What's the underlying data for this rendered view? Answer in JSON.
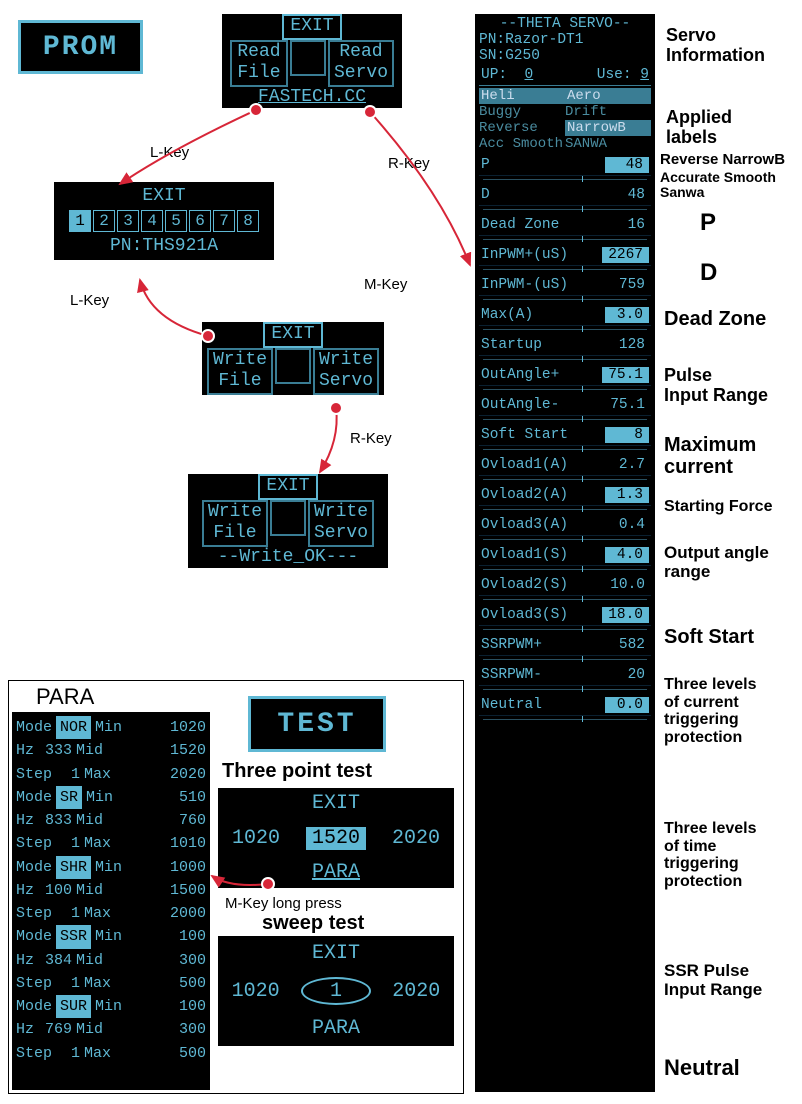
{
  "colors": {
    "lcd_bg": "#000000",
    "lcd_fg": "#5fb8d4",
    "arrow": "#d72638",
    "text": "#000000"
  },
  "prom": {
    "logo": "PROM"
  },
  "menu1": {
    "exit": "EXIT",
    "lt": "Read",
    "lb": "File",
    "rt": "Read",
    "rb": "Servo",
    "footer": "FASTECH.CC"
  },
  "keyLabels": {
    "lkey": "L-Key",
    "rkey": "R-Key",
    "mkey": "M-Key",
    "mkey_long": "M-Key long press"
  },
  "numpad": {
    "exit": "EXIT",
    "cells": [
      "1",
      "2",
      "3",
      "4",
      "5",
      "6",
      "7",
      "8"
    ],
    "sel_index": 0,
    "pn": "PN:THS921A"
  },
  "menu2": {
    "exit": "EXIT",
    "lt": "Write",
    "lb": "File",
    "rt": "Write",
    "rb": "Servo"
  },
  "menu3": {
    "exit": "EXIT",
    "lt": "Write",
    "lb": "File",
    "rt": "Write",
    "rb": "Servo",
    "status": "--Write_OK---"
  },
  "right": {
    "title": "--THETA SERVO--",
    "pn": "PN:Razor-DT1",
    "sn": "SN:G250",
    "up_label": "UP:",
    "up_val": "0",
    "use_label": "Use:",
    "use_val": "9",
    "labels": [
      [
        "Heli",
        "Aero"
      ],
      [
        "Buggy",
        "Drift"
      ],
      [
        "Reverse",
        "NarrowB"
      ],
      [
        "Acc Smooth",
        "SANWA"
      ]
    ],
    "params": [
      {
        "k": "P",
        "v": "48",
        "hl": true
      },
      {
        "k": "D",
        "v": "48",
        "hl": false
      },
      {
        "k": "Dead Zone",
        "v": "16",
        "hl": false
      },
      {
        "k": "InPWM+(uS)",
        "v": "2267",
        "hl": true
      },
      {
        "k": "InPWM-(uS)",
        "v": "759",
        "hl": false
      },
      {
        "k": "Max(A)",
        "v": "3.0",
        "hl": true
      },
      {
        "k": "Startup",
        "v": "128",
        "hl": false
      },
      {
        "k": "OutAngle+",
        "v": "75.1",
        "hl": true
      },
      {
        "k": "OutAngle-",
        "v": "75.1",
        "hl": false
      },
      {
        "k": "Soft Start",
        "v": "8",
        "hl": true
      },
      {
        "k": "Ovload1(A)",
        "v": "2.7",
        "hl": false
      },
      {
        "k": "Ovload2(A)",
        "v": "1.3",
        "hl": true
      },
      {
        "k": "Ovload3(A)",
        "v": "0.4",
        "hl": false
      },
      {
        "k": "Ovload1(S)",
        "v": "4.0",
        "hl": true
      },
      {
        "k": "Ovload2(S)",
        "v": "10.0",
        "hl": false
      },
      {
        "k": "Ovload3(S)",
        "v": "18.0",
        "hl": true
      },
      {
        "k": "SSRPWM+",
        "v": "582",
        "hl": false
      },
      {
        "k": "SSRPWM-",
        "v": "20",
        "hl": false
      },
      {
        "k": "Neutral",
        "v": "0.0",
        "hl": true
      }
    ]
  },
  "anno": {
    "servo_info": "Servo\nInformation",
    "applied": "Applied\nlabels",
    "rev_narrow": "Reverse   NarrowB",
    "acc_smooth": "Accurate Smooth Sanwa",
    "P": "P",
    "D": "D",
    "dead": "Dead Zone",
    "pulse": "Pulse\nInput Range",
    "maxc": "Maximum\ncurrent",
    "startf": "Starting Force",
    "outang": "Output angle\nrange",
    "soft": "Soft Start",
    "curprot": "Three levels\nof current\ntriggering\nprotection",
    "timeprot": "Three levels\nof time\ntriggering\nprotection",
    "ssr": "SSR Pulse\nInput Range",
    "neutral": "Neutral"
  },
  "para": {
    "title": "PARA",
    "rows": [
      {
        "mode": "NOR",
        "hz": "333",
        "step": "1",
        "min": "1020",
        "mid": "1520",
        "max": "2020"
      },
      {
        "mode": "SR",
        "hz": "833",
        "step": "1",
        "min": "510",
        "mid": "760",
        "max": "1010"
      },
      {
        "mode": "SHR",
        "hz": "100",
        "step": "1",
        "min": "1000",
        "mid": "1500",
        "max": "2000"
      },
      {
        "mode": "SSR",
        "hz": "384",
        "step": "1",
        "min": "100",
        "mid": "300",
        "max": "500"
      },
      {
        "mode": "SUR",
        "hz": "769",
        "step": "1",
        "min": "100",
        "mid": "300",
        "max": "500"
      }
    ],
    "l_mode": "Mode",
    "l_hz": "Hz",
    "l_step": "Step",
    "l_min": "Min",
    "l_mid": "Mid",
    "l_max": "Max"
  },
  "test": {
    "logo": "TEST",
    "tp_title": "Three point test",
    "tp_exit": "EXIT",
    "tp_a": "1020",
    "tp_b": "1520",
    "tp_c": "2020",
    "tp_para": "PARA",
    "sw_title": "sweep test",
    "sw_exit": "EXIT",
    "sw_a": "1020",
    "sw_mid": "1",
    "sw_c": "2020",
    "sw_para": "PARA"
  }
}
